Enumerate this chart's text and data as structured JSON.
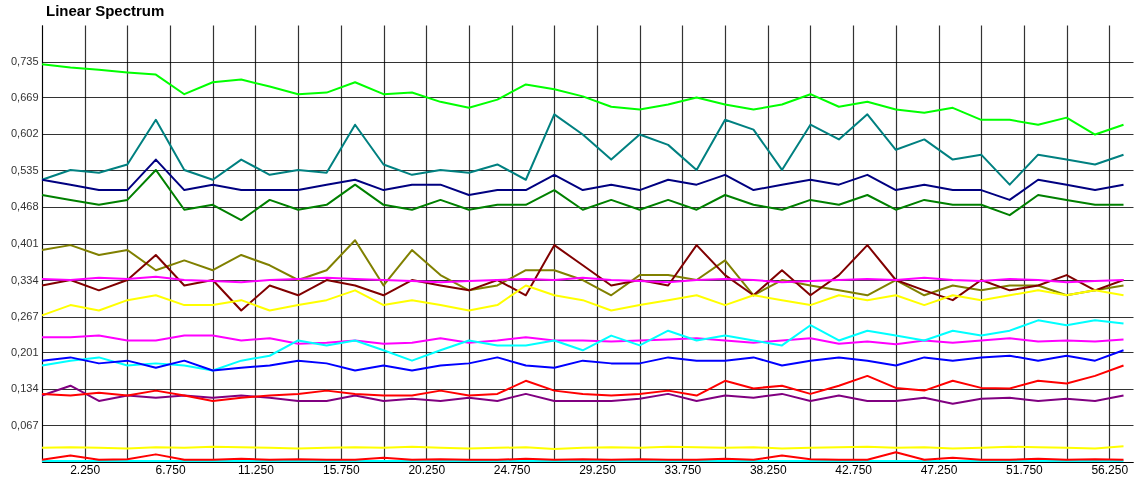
{
  "chart_data": {
    "type": "line",
    "title": "Linear Spectrum",
    "x": [
      0,
      1500,
      3000,
      4500,
      6000,
      7500,
      9000,
      10500,
      12000,
      13500,
      15000,
      16500,
      18000,
      19500,
      21000,
      22500,
      24000,
      25500,
      27000,
      28500,
      30000,
      31500,
      33000,
      34500,
      36000,
      37500,
      39000,
      40500,
      42000,
      43500,
      45000,
      46500,
      48000,
      49500,
      51000,
      52500,
      54000,
      55500,
      57000
    ],
    "xlim": [
      0,
      57500
    ],
    "xticks": [
      {
        "value": 0,
        "label": null
      },
      {
        "value": 2250,
        "label": "2.250"
      },
      {
        "value": 4500,
        "label": null
      },
      {
        "value": 6750,
        "label": "6.750"
      },
      {
        "value": 9000,
        "label": null
      },
      {
        "value": 11250,
        "label": "11.250"
      },
      {
        "value": 13500,
        "label": null
      },
      {
        "value": 15750,
        "label": "15.750"
      },
      {
        "value": 18000,
        "label": null
      },
      {
        "value": 20250,
        "label": "20.250"
      },
      {
        "value": 22500,
        "label": null
      },
      {
        "value": 24750,
        "label": "24.750"
      },
      {
        "value": 27000,
        "label": null
      },
      {
        "value": 29250,
        "label": "29.250"
      },
      {
        "value": 31500,
        "label": null
      },
      {
        "value": 33750,
        "label": "33.750"
      },
      {
        "value": 36000,
        "label": null
      },
      {
        "value": 38250,
        "label": "38.250"
      },
      {
        "value": 40500,
        "label": null
      },
      {
        "value": 42750,
        "label": "42.750"
      },
      {
        "value": 45000,
        "label": null
      },
      {
        "value": 47250,
        "label": "47.250"
      },
      {
        "value": 49500,
        "label": null
      },
      {
        "value": 51750,
        "label": "51.750"
      },
      {
        "value": 54000,
        "label": null
      },
      {
        "value": 56250,
        "label": "56.250"
      }
    ],
    "ylim": [
      0,
      0.802
    ],
    "yticks": [
      {
        "value": 0,
        "label": null
      },
      {
        "value": 0.067,
        "label": "0,067"
      },
      {
        "value": 0.134,
        "label": "0,134"
      },
      {
        "value": 0.201,
        "label": "0,201"
      },
      {
        "value": 0.267,
        "label": "0,267"
      },
      {
        "value": 0.334,
        "label": "0,334"
      },
      {
        "value": 0.401,
        "label": "0,401"
      },
      {
        "value": 0.468,
        "label": "0,468"
      },
      {
        "value": 0.535,
        "label": "0,535"
      },
      {
        "value": 0.602,
        "label": "0,602"
      },
      {
        "value": 0.669,
        "label": "0,669"
      },
      {
        "value": 0.735,
        "label": "0,735"
      }
    ],
    "grid": true,
    "series": [
      {
        "color": "#00ffff",
        "values": [
          0.002,
          0.002,
          0.002,
          0.002,
          0.002,
          0.002,
          0.002,
          0.002,
          0.002,
          0.002,
          0.002,
          0.002,
          0.002,
          0.002,
          0.002,
          0.002,
          0.002,
          0.002,
          0.002,
          0.002,
          0.002,
          0.002,
          0.002,
          0.002,
          0.002,
          0.002,
          0.002,
          0.002,
          0.002,
          0.002,
          0.002,
          0.002,
          0.002,
          0.002,
          0.002,
          0.002,
          0.002,
          0.002,
          0.002
        ]
      },
      {
        "color": "#00ff00",
        "values": [
          0.73,
          0.724,
          0.72,
          0.715,
          0.711,
          0.675,
          0.697,
          0.702,
          0.689,
          0.675,
          0.678,
          0.697,
          0.675,
          0.678,
          0.661,
          0.65,
          0.665,
          0.693,
          0.684,
          0.671,
          0.652,
          0.647,
          0.656,
          0.669,
          0.656,
          0.647,
          0.656,
          0.675,
          0.652,
          0.661,
          0.647,
          0.641,
          0.65,
          0.628,
          0.628,
          0.619,
          0.632,
          0.601,
          0.619
        ]
      },
      {
        "color": "#008080",
        "values": [
          0.518,
          0.536,
          0.531,
          0.546,
          0.628,
          0.536,
          0.518,
          0.555,
          0.527,
          0.536,
          0.531,
          0.619,
          0.546,
          0.527,
          0.536,
          0.531,
          0.546,
          0.518,
          0.638,
          0.601,
          0.555,
          0.601,
          0.582,
          0.536,
          0.628,
          0.61,
          0.536,
          0.619,
          0.592,
          0.638,
          0.573,
          0.592,
          0.555,
          0.564,
          0.509,
          0.564,
          0.555,
          0.546,
          0.564
        ]
      },
      {
        "color": "#000080",
        "values": [
          0.518,
          0.509,
          0.499,
          0.499,
          0.555,
          0.499,
          0.509,
          0.499,
          0.499,
          0.499,
          0.509,
          0.518,
          0.499,
          0.509,
          0.509,
          0.49,
          0.499,
          0.499,
          0.527,
          0.499,
          0.509,
          0.499,
          0.518,
          0.509,
          0.527,
          0.499,
          0.509,
          0.518,
          0.509,
          0.527,
          0.499,
          0.509,
          0.499,
          0.499,
          0.481,
          0.518,
          0.509,
          0.499,
          0.509
        ]
      },
      {
        "color": "#008000",
        "values": [
          0.49,
          0.481,
          0.472,
          0.481,
          0.536,
          0.463,
          0.472,
          0.444,
          0.481,
          0.463,
          0.472,
          0.509,
          0.472,
          0.463,
          0.481,
          0.463,
          0.472,
          0.472,
          0.499,
          0.463,
          0.481,
          0.463,
          0.481,
          0.463,
          0.49,
          0.472,
          0.463,
          0.481,
          0.472,
          0.49,
          0.463,
          0.481,
          0.472,
          0.472,
          0.453,
          0.49,
          0.481,
          0.472,
          0.472
        ]
      },
      {
        "color": "#808000",
        "values": [
          0.389,
          0.398,
          0.38,
          0.389,
          0.352,
          0.37,
          0.352,
          0.38,
          0.361,
          0.334,
          0.352,
          0.407,
          0.324,
          0.389,
          0.343,
          0.315,
          0.324,
          0.352,
          0.352,
          0.334,
          0.306,
          0.343,
          0.343,
          0.334,
          0.37,
          0.306,
          0.334,
          0.324,
          0.315,
          0.306,
          0.334,
          0.306,
          0.324,
          0.315,
          0.324,
          0.324,
          0.306,
          0.315,
          0.324
        ]
      },
      {
        "color": "#800000",
        "values": [
          0.324,
          0.334,
          0.315,
          0.334,
          0.38,
          0.324,
          0.334,
          0.278,
          0.324,
          0.306,
          0.334,
          0.324,
          0.306,
          0.334,
          0.324,
          0.315,
          0.334,
          0.306,
          0.398,
          0.361,
          0.324,
          0.334,
          0.324,
          0.398,
          0.343,
          0.306,
          0.352,
          0.306,
          0.343,
          0.398,
          0.334,
          0.315,
          0.297,
          0.334,
          0.315,
          0.324,
          0.343,
          0.315,
          0.334
        ]
      },
      {
        "color": "#ff00ff",
        "values": [
          0.336,
          0.334,
          0.338,
          0.336,
          0.34,
          0.334,
          0.332,
          0.33,
          0.334,
          0.336,
          0.338,
          0.336,
          0.334,
          0.332,
          0.33,
          0.332,
          0.334,
          0.336,
          0.334,
          0.338,
          0.334,
          0.332,
          0.33,
          0.334,
          0.336,
          0.334,
          0.33,
          0.332,
          0.334,
          0.336,
          0.334,
          0.338,
          0.334,
          0.332,
          0.336,
          0.334,
          0.33,
          0.332,
          0.334
        ]
      },
      {
        "color": "#ffff00",
        "values": [
          0.269,
          0.288,
          0.278,
          0.297,
          0.306,
          0.288,
          0.288,
          0.297,
          0.278,
          0.288,
          0.297,
          0.315,
          0.288,
          0.297,
          0.288,
          0.278,
          0.288,
          0.324,
          0.306,
          0.297,
          0.278,
          0.288,
          0.297,
          0.306,
          0.288,
          0.306,
          0.297,
          0.288,
          0.306,
          0.297,
          0.306,
          0.288,
          0.306,
          0.297,
          0.306,
          0.315,
          0.306,
          0.315,
          0.306
        ]
      },
      {
        "color": "#ff00ff",
        "values": [
          0.229,
          0.229,
          0.232,
          0.223,
          0.223,
          0.232,
          0.232,
          0.223,
          0.227,
          0.217,
          0.219,
          0.223,
          0.217,
          0.219,
          0.227,
          0.219,
          0.223,
          0.229,
          0.223,
          0.223,
          0.221,
          0.223,
          0.225,
          0.227,
          0.223,
          0.219,
          0.223,
          0.227,
          0.217,
          0.221,
          0.216,
          0.223,
          0.219,
          0.223,
          0.227,
          0.221,
          0.223,
          0.221,
          0.225
        ]
      },
      {
        "color": "#00ffff",
        "values": [
          0.177,
          0.186,
          0.192,
          0.177,
          0.181,
          0.177,
          0.168,
          0.186,
          0.195,
          0.223,
          0.214,
          0.223,
          0.205,
          0.186,
          0.205,
          0.223,
          0.214,
          0.214,
          0.223,
          0.205,
          0.232,
          0.214,
          0.241,
          0.223,
          0.232,
          0.223,
          0.214,
          0.251,
          0.223,
          0.241,
          0.232,
          0.223,
          0.241,
          0.232,
          0.241,
          0.26,
          0.251,
          0.26,
          0.254
        ]
      },
      {
        "color": "#0000ff",
        "values": [
          0.186,
          0.192,
          0.181,
          0.186,
          0.173,
          0.186,
          0.168,
          0.173,
          0.177,
          0.186,
          0.181,
          0.168,
          0.177,
          0.168,
          0.177,
          0.181,
          0.192,
          0.177,
          0.173,
          0.186,
          0.181,
          0.181,
          0.192,
          0.186,
          0.186,
          0.192,
          0.177,
          0.186,
          0.192,
          0.186,
          0.177,
          0.192,
          0.186,
          0.192,
          0.195,
          0.186,
          0.195,
          0.186,
          0.205
        ]
      },
      {
        "color": "#800080",
        "values": [
          0.122,
          0.14,
          0.112,
          0.122,
          0.118,
          0.122,
          0.118,
          0.122,
          0.118,
          0.112,
          0.112,
          0.122,
          0.112,
          0.116,
          0.112,
          0.118,
          0.112,
          0.125,
          0.112,
          0.112,
          0.112,
          0.116,
          0.125,
          0.112,
          0.122,
          0.118,
          0.125,
          0.112,
          0.122,
          0.112,
          0.112,
          0.118,
          0.107,
          0.116,
          0.118,
          0.112,
          0.116,
          0.112,
          0.122
        ]
      },
      {
        "color": "#ff0000",
        "values": [
          0.125,
          0.122,
          0.127,
          0.122,
          0.131,
          0.122,
          0.112,
          0.118,
          0.122,
          0.125,
          0.131,
          0.125,
          0.122,
          0.122,
          0.131,
          0.122,
          0.125,
          0.149,
          0.131,
          0.125,
          0.122,
          0.125,
          0.131,
          0.122,
          0.149,
          0.135,
          0.14,
          0.125,
          0.14,
          0.158,
          0.136,
          0.131,
          0.149,
          0.136,
          0.135,
          0.149,
          0.144,
          0.158,
          0.177
        ]
      },
      {
        "color": "#ffff00",
        "values": [
          0.026,
          0.027,
          0.026,
          0.025,
          0.027,
          0.026,
          0.028,
          0.027,
          0.026,
          0.025,
          0.026,
          0.027,
          0.026,
          0.028,
          0.026,
          0.025,
          0.026,
          0.027,
          0.024,
          0.026,
          0.027,
          0.026,
          0.028,
          0.027,
          0.026,
          0.027,
          0.025,
          0.026,
          0.027,
          0.028,
          0.026,
          0.027,
          0.025,
          0.026,
          0.028,
          0.027,
          0.026,
          0.025,
          0.029
        ]
      },
      {
        "color": "#ff0000",
        "values": [
          0.004,
          0.012,
          0.004,
          0.005,
          0.014,
          0.004,
          0.004,
          0.006,
          0.004,
          0.005,
          0.004,
          0.004,
          0.008,
          0.004,
          0.005,
          0.004,
          0.004,
          0.006,
          0.004,
          0.005,
          0.004,
          0.005,
          0.004,
          0.004,
          0.006,
          0.004,
          0.012,
          0.005,
          0.004,
          0.004,
          0.018,
          0.004,
          0.008,
          0.004,
          0.004,
          0.006,
          0.004,
          0.005,
          0.004
        ]
      }
    ]
  }
}
